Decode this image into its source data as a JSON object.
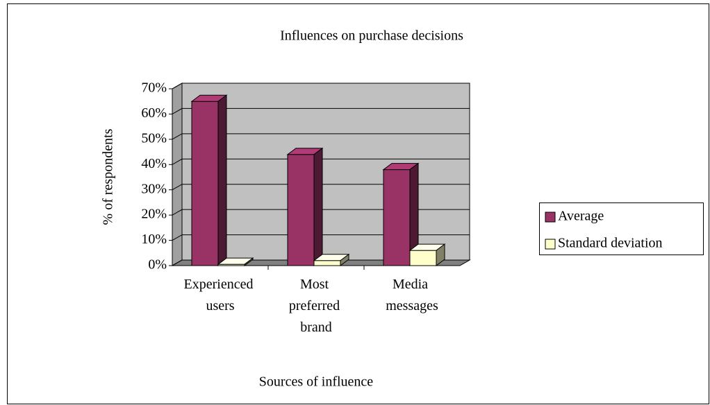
{
  "chart_data": {
    "type": "bar3d",
    "title": "Influences on purchase decisions",
    "x_label": "Sources of influence",
    "y_label": "% of respondents",
    "categories": [
      "Experienced users",
      "Most preferred brand",
      "Media messages"
    ],
    "series": [
      {
        "name": "Average",
        "color": "#993366",
        "values": [
          65,
          44,
          38
        ]
      },
      {
        "name": "Standard deviation",
        "color": "#FFFFCC",
        "values": [
          0.5,
          2,
          6
        ]
      }
    ],
    "ylim": [
      0,
      70
    ],
    "yticks": [
      {
        "value": 0,
        "label": "0%"
      },
      {
        "value": 10,
        "label": "10%"
      },
      {
        "value": 20,
        "label": "20%"
      },
      {
        "value": 30,
        "label": "30%"
      },
      {
        "value": 40,
        "label": "40%"
      },
      {
        "value": 50,
        "label": "50%"
      },
      {
        "value": 60,
        "label": "60%"
      },
      {
        "value": 70,
        "label": "70%"
      }
    ],
    "grid": true,
    "legend": "right"
  }
}
